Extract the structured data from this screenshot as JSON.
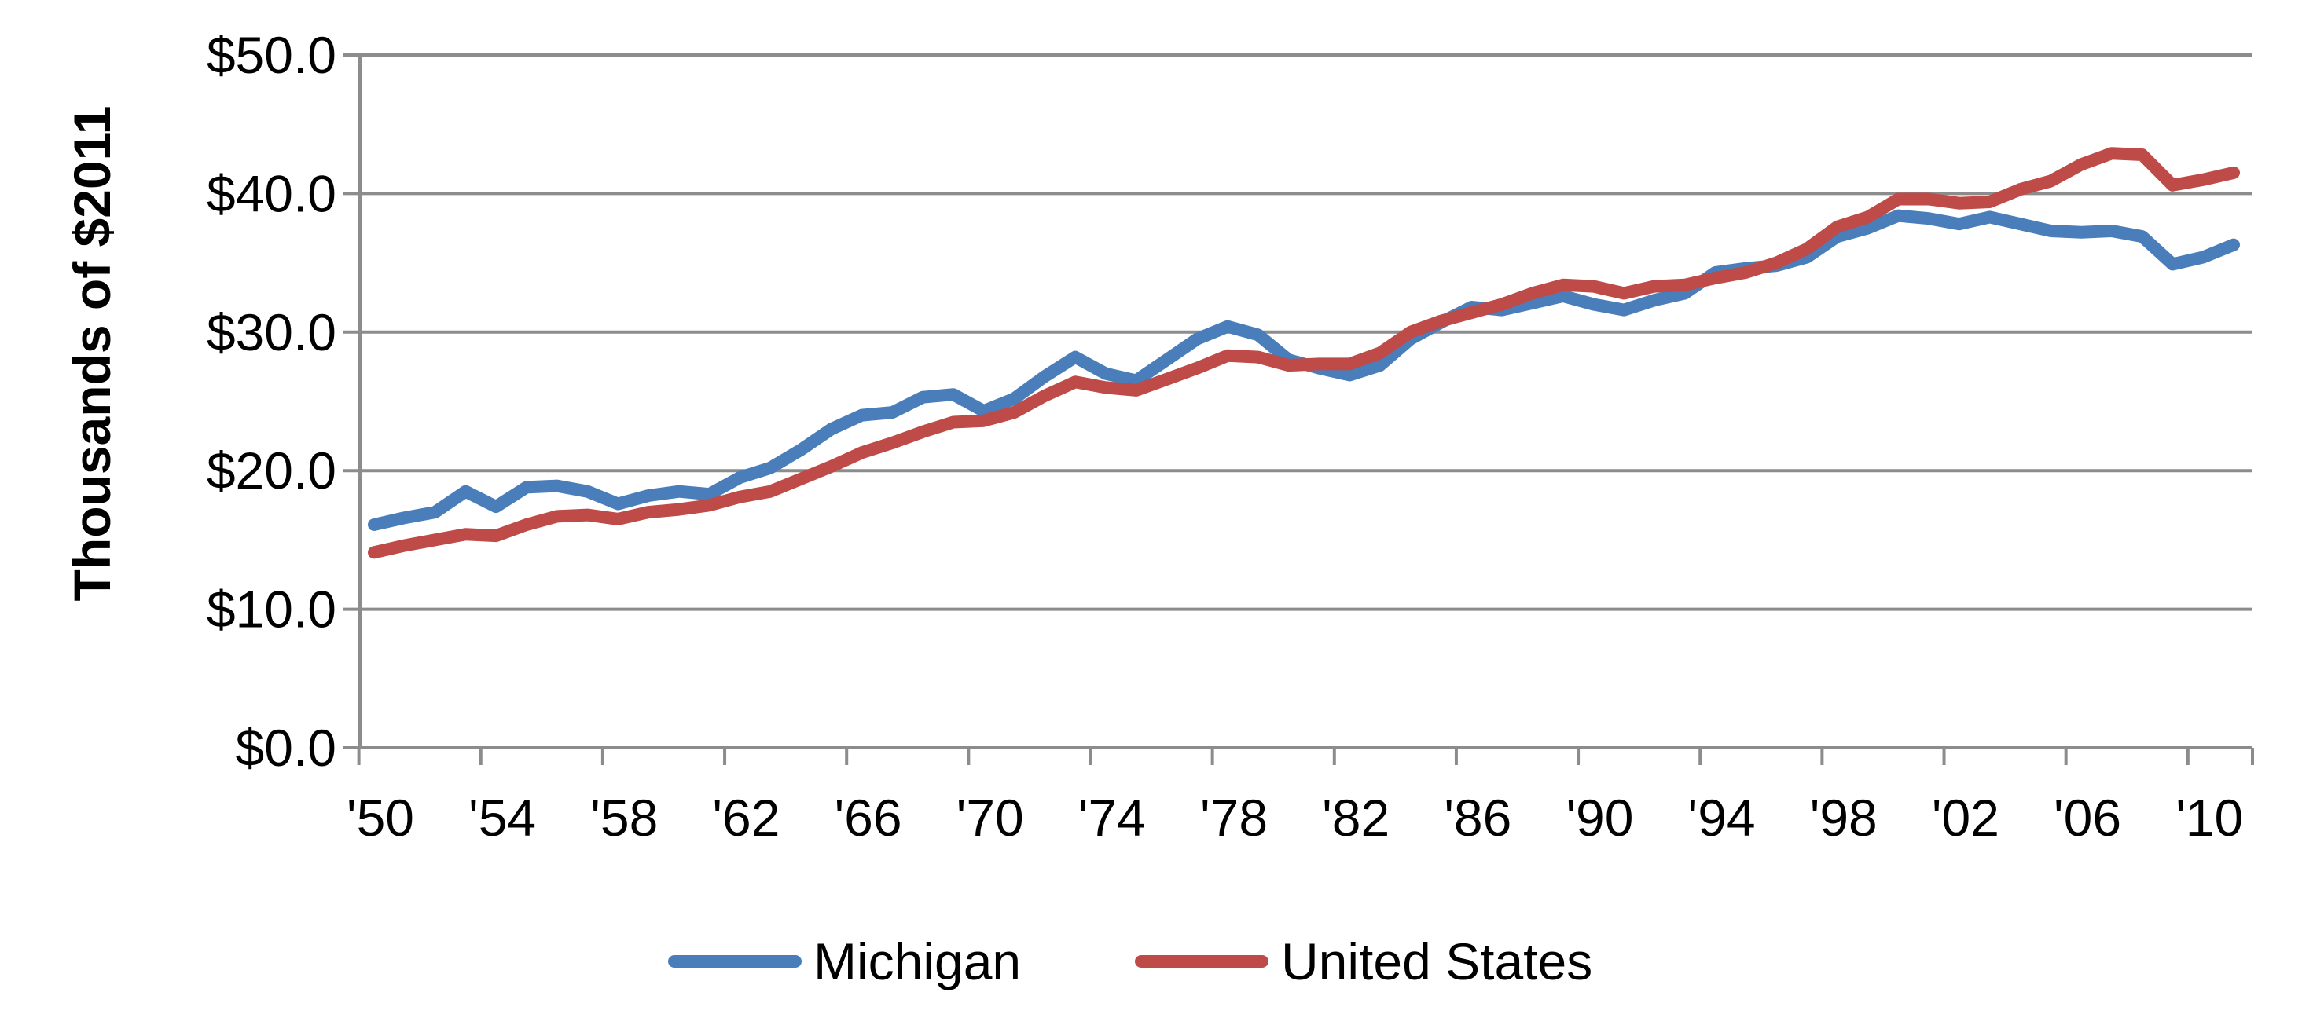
{
  "chart_data": {
    "type": "line",
    "title": "",
    "xlabel": "",
    "ylabel": "Thousands of $2011",
    "ylim": [
      0,
      50
    ],
    "yticks": [
      0,
      10,
      20,
      30,
      40,
      50
    ],
    "ytick_labels": [
      "$0.0",
      "$10.0",
      "$20.0",
      "$30.0",
      "$40.0",
      "$50.0"
    ],
    "xlim": [
      1950,
      2011
    ],
    "xticks": [
      1950,
      1954,
      1958,
      1962,
      1966,
      1970,
      1974,
      1978,
      1982,
      1986,
      1990,
      1994,
      1998,
      2002,
      2006,
      2010
    ],
    "xtick_labels": [
      "'50",
      "'54",
      "'58",
      "'62",
      "'66",
      "'70",
      "'74",
      "'78",
      "'82",
      "'86",
      "'90",
      "'94",
      "'98",
      "'02",
      "'06",
      "'10"
    ],
    "grid": "horizontal",
    "legend_position": "bottom",
    "x": [
      1950,
      1951,
      1952,
      1953,
      1954,
      1955,
      1956,
      1957,
      1958,
      1959,
      1960,
      1961,
      1962,
      1963,
      1964,
      1965,
      1966,
      1967,
      1968,
      1969,
      1970,
      1971,
      1972,
      1973,
      1974,
      1975,
      1976,
      1977,
      1978,
      1979,
      1980,
      1981,
      1982,
      1983,
      1984,
      1985,
      1986,
      1987,
      1988,
      1989,
      1990,
      1991,
      1992,
      1993,
      1994,
      1995,
      1996,
      1997,
      1998,
      1999,
      2000,
      2001,
      2002,
      2003,
      2004,
      2005,
      2006,
      2007,
      2008,
      2009,
      2010,
      2011
    ],
    "series": [
      {
        "name": "Michigan",
        "color": "#4a7ebb",
        "values": [
          16.1,
          16.6,
          17.0,
          18.5,
          17.4,
          18.8,
          18.9,
          18.5,
          17.6,
          18.2,
          18.5,
          18.3,
          19.5,
          20.2,
          21.5,
          23.0,
          24.0,
          24.2,
          25.3,
          25.5,
          24.3,
          25.2,
          26.8,
          28.2,
          27.0,
          26.5,
          28.0,
          29.5,
          30.4,
          29.8,
          28.0,
          27.4,
          26.9,
          27.6,
          29.5,
          30.7,
          31.8,
          31.6,
          32.1,
          32.6,
          32.0,
          31.6,
          32.3,
          32.8,
          34.3,
          34.6,
          34.8,
          35.4,
          36.9,
          37.5,
          38.4,
          38.2,
          37.8,
          38.3,
          37.8,
          37.3,
          37.2,
          37.3,
          36.9,
          34.9,
          35.4,
          36.3
        ]
      },
      {
        "name": "United States",
        "color": "#be4b48",
        "values": [
          14.1,
          14.6,
          15.0,
          15.4,
          15.3,
          16.1,
          16.7,
          16.8,
          16.5,
          17.0,
          17.2,
          17.5,
          18.1,
          18.5,
          19.4,
          20.3,
          21.3,
          22.0,
          22.8,
          23.5,
          23.6,
          24.2,
          25.4,
          26.4,
          26.0,
          25.8,
          26.6,
          27.4,
          28.3,
          28.2,
          27.6,
          27.7,
          27.7,
          28.5,
          30.0,
          30.8,
          31.4,
          32.0,
          32.8,
          33.4,
          33.3,
          32.8,
          33.3,
          33.4,
          33.9,
          34.3,
          35.0,
          36.0,
          37.6,
          38.3,
          39.6,
          39.6,
          39.3,
          39.4,
          40.3,
          40.9,
          42.1,
          42.9,
          42.8,
          40.6,
          41.0,
          41.5
        ]
      }
    ]
  }
}
